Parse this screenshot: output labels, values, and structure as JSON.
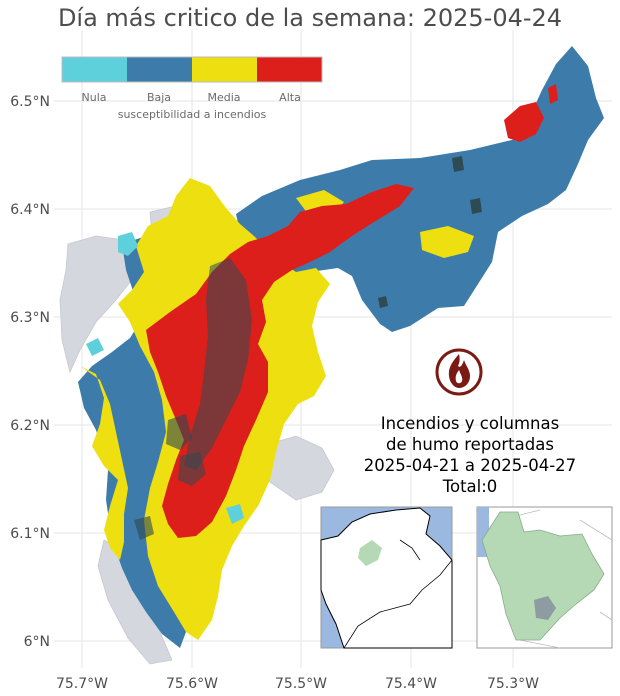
{
  "title": "Día más critico de la semana: 2025-04-24",
  "legend": {
    "title": "susceptibilidad a incendios",
    "items": [
      {
        "label": "Nula",
        "color": "#5dd0dc"
      },
      {
        "label": "Baja",
        "color": "#3d7caa"
      },
      {
        "label": "Media",
        "color": "#eedf10"
      },
      {
        "label": "Alta",
        "color": "#dc1f1a"
      }
    ]
  },
  "axes": {
    "x_ticks": [
      "75.7°W",
      "75.6°W",
      "75.5°W",
      "75.4°W",
      "75.3°W"
    ],
    "y_ticks": [
      "6.5°N",
      "6.4°N",
      "6.3°N",
      "6.2°N",
      "6.1°N",
      "6°N"
    ]
  },
  "info": {
    "line1": "Incendios y columnas",
    "line2": "de humo reportadas",
    "line3": "2025-04-21 a 2025-04-27",
    "line4": "Total:0"
  },
  "icons": {
    "fire": "fire-icon"
  },
  "colors": {
    "grid": "#e6e6e6",
    "outside_land": "#d4d8de",
    "dark_speckle": "#2e4a52",
    "inset_sea": "#9ab8e0",
    "inset_region": "#b5d9b5"
  }
}
